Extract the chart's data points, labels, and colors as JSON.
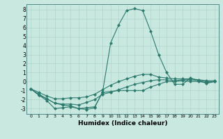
{
  "xlabel": "Humidex (Indice chaleur)",
  "background_color": "#c8e8e0",
  "line_color": "#2d7a6e",
  "grid_color": "#b0d4cc",
  "xlim": [
    -0.5,
    23.5
  ],
  "ylim": [
    -3.6,
    8.6
  ],
  "xticks": [
    0,
    1,
    2,
    3,
    4,
    5,
    6,
    7,
    8,
    9,
    10,
    11,
    12,
    13,
    14,
    15,
    16,
    17,
    18,
    19,
    20,
    21,
    22,
    23
  ],
  "yticks": [
    -3,
    -2,
    -1,
    0,
    1,
    2,
    3,
    4,
    5,
    6,
    7,
    8
  ],
  "x": [
    0,
    1,
    2,
    3,
    4,
    5,
    6,
    7,
    8,
    9,
    10,
    11,
    12,
    13,
    14,
    15,
    16,
    17,
    18,
    19,
    20,
    21,
    22,
    23
  ],
  "line1": [
    -0.8,
    -1.5,
    -2.1,
    -3.0,
    -2.9,
    -2.8,
    -3.0,
    -2.9,
    -2.8,
    -1.2,
    -1.1,
    -1.0,
    -1.0,
    -1.0,
    -1.0,
    -0.6,
    -0.3,
    0.0,
    0.0,
    0.1,
    0.0,
    0.0,
    -0.1,
    0.0
  ],
  "line2": [
    -0.8,
    -1.4,
    -1.9,
    -2.4,
    -2.5,
    -2.5,
    -2.6,
    -2.3,
    -2.0,
    -1.4,
    -1.2,
    -0.9,
    -0.6,
    -0.3,
    -0.1,
    0.1,
    0.2,
    0.2,
    0.1,
    0.2,
    0.2,
    0.1,
    0.0,
    0.0
  ],
  "line3": [
    -0.8,
    -1.2,
    -1.6,
    -1.9,
    -1.9,
    -1.8,
    -1.8,
    -1.7,
    -1.4,
    -0.9,
    -0.4,
    0.0,
    0.3,
    0.6,
    0.8,
    0.8,
    0.5,
    0.4,
    0.3,
    0.3,
    0.3,
    0.2,
    0.1,
    0.1
  ],
  "line4": [
    -0.8,
    -1.5,
    -1.9,
    -2.4,
    -2.6,
    -2.7,
    -3.0,
    -3.1,
    -2.9,
    -1.1,
    4.3,
    6.3,
    7.9,
    8.1,
    7.9,
    5.6,
    3.0,
    1.0,
    -0.3,
    -0.3,
    0.4,
    0.1,
    -0.2,
    0.0
  ]
}
